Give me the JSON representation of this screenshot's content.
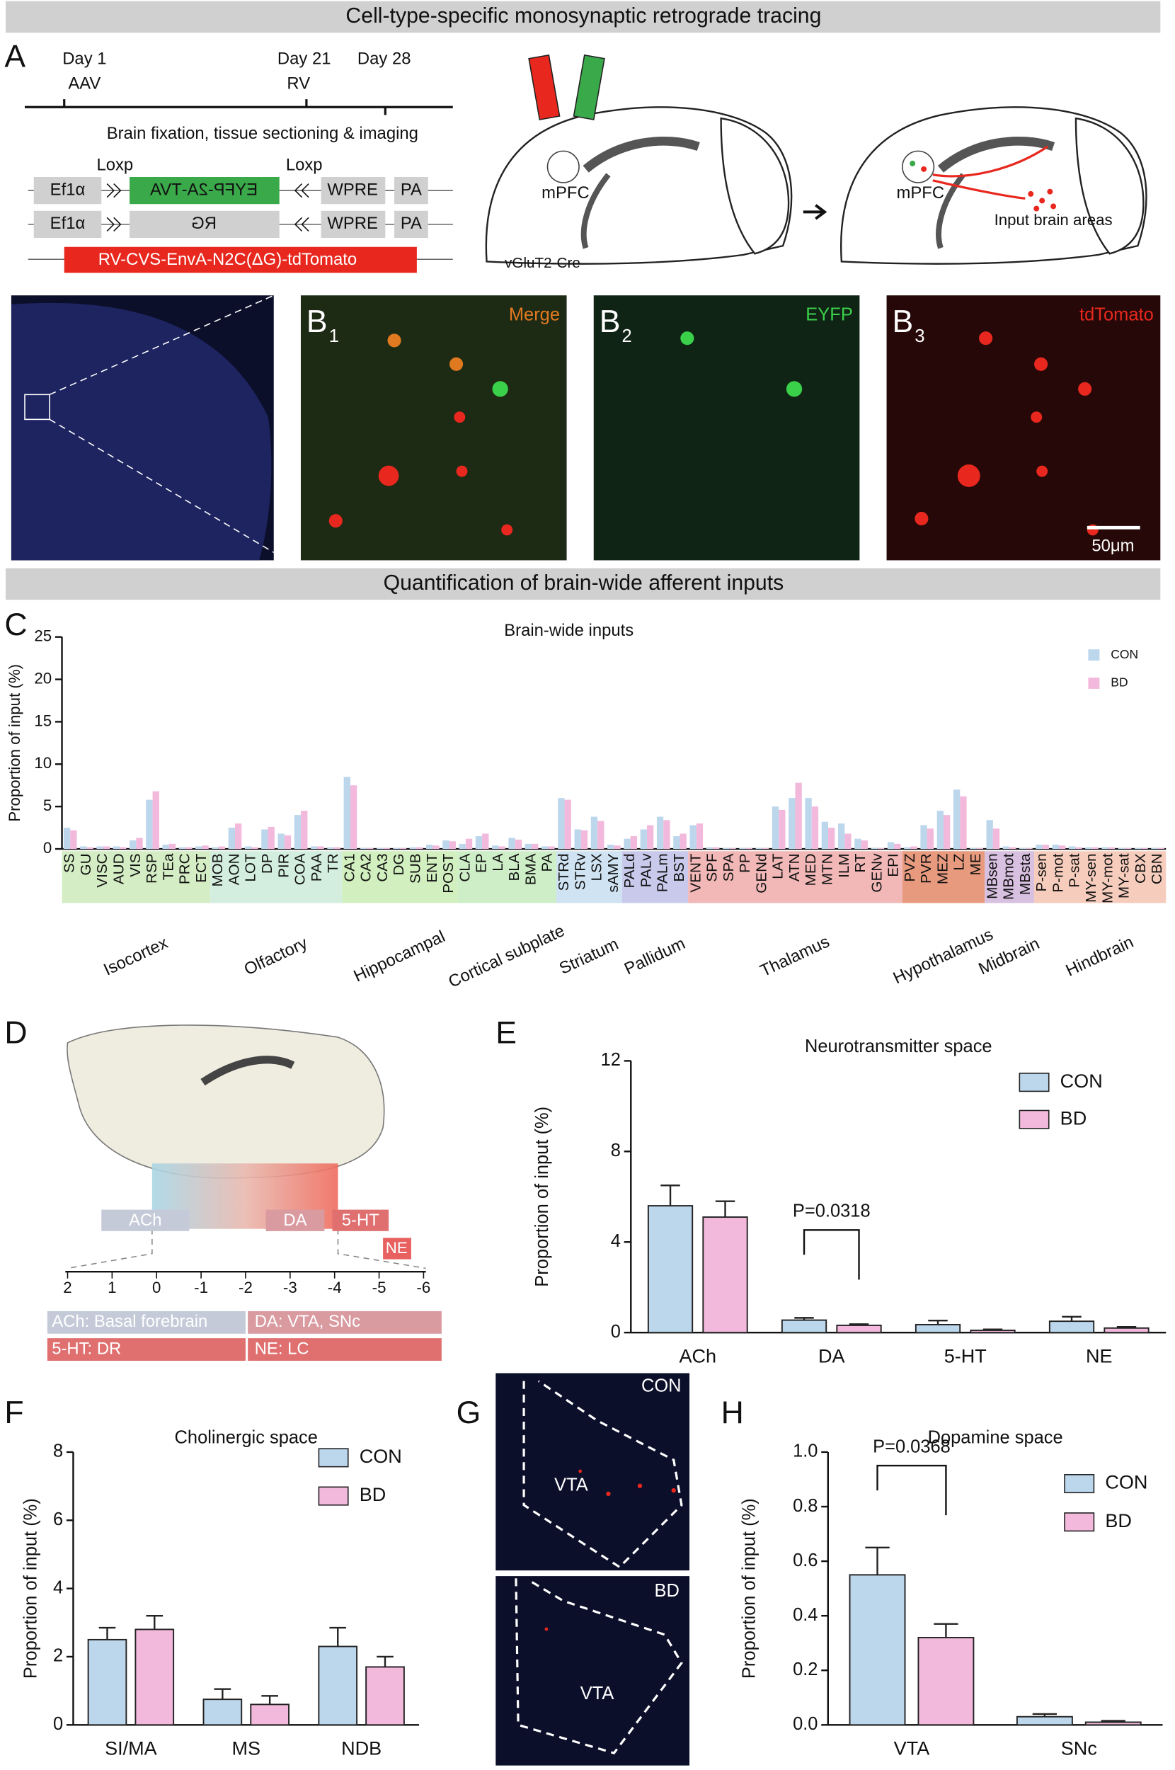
{
  "headers": [
    "Cell-type-specific monosynaptic retrograde tracing",
    "Quantification of brain-wide afferent inputs"
  ],
  "panel_labels": [
    "A",
    "B",
    "C",
    "D",
    "E",
    "F",
    "G",
    "H"
  ],
  "panel_a": {
    "timeline": [
      {
        "day": "Day 1",
        "event": "AAV"
      },
      {
        "day": "Day 21",
        "event": "RV"
      },
      {
        "day": "Day 28"
      }
    ],
    "step": "Brain fixation, tissue sectioning & imaging",
    "loxp": "Loxp",
    "constructs": [
      [
        "Ef1α",
        "EYFP-2A-TVA",
        "WPRE",
        "PA"
      ],
      [
        "Ef1α",
        "RG",
        "WPRE",
        "PA"
      ],
      [
        "RV-CVS-EnvA-N2C(ΔG)-tdTomato"
      ]
    ],
    "region": "mPFC",
    "inputs": "Input brain areas",
    "mouse": "vGluT2-Cre"
  },
  "panel_b": {
    "images": [
      {
        "letter": "B",
        "sub": "1",
        "label": "Merge"
      },
      {
        "letter": "B",
        "sub": "2",
        "label": "EYFP"
      },
      {
        "letter": "B",
        "sub": "3",
        "label": "tdTomato"
      }
    ],
    "scale_bar": "50μm"
  },
  "panel_d": {
    "boxes": [
      "ACh",
      "DA",
      "5-HT",
      "NE"
    ],
    "axis": [
      2,
      1,
      0,
      -1,
      -2,
      -3,
      -4,
      -5,
      -6
    ],
    "legend": [
      "ACh: Basal forebrain",
      "DA: VTA, SNc",
      "5-HT: DR",
      "NE: LC"
    ]
  },
  "panel_g": {
    "images": [
      {
        "group": "CON",
        "region": "VTA"
      },
      {
        "group": "BD",
        "region": "VTA"
      }
    ]
  },
  "chart_data": [
    {
      "type": "bar",
      "title": "Brain-wide inputs",
      "ylabel": "Proportion of input (%)",
      "ylim": [
        0,
        25
      ],
      "yticks": [
        0,
        5,
        10,
        15,
        20,
        25
      ],
      "groups": [
        {
          "name": "Isocortex",
          "color": "#d4edc4",
          "categories": [
            "SS",
            "GU",
            "VISC",
            "AUD",
            "VIS",
            "RSP",
            "TEa",
            "PRC",
            "ECT"
          ]
        },
        {
          "name": "Olfactory",
          "color": "#d3eedf",
          "categories": [
            "MOB",
            "AON",
            "LOT",
            "DP",
            "PIR",
            "COA",
            "PAA",
            "TR"
          ]
        },
        {
          "name": "Hippocampal",
          "color": "#d2efc0",
          "categories": [
            "CA1",
            "CA2",
            "CA3",
            "DG",
            "SUB",
            "ENT",
            "POST"
          ]
        },
        {
          "name": "Cortical subplate",
          "color": "#cdeec6",
          "categories": [
            "CLA",
            "EP",
            "LA",
            "BLA",
            "BMA",
            "PA"
          ]
        },
        {
          "name": "Striatum",
          "color": "#cfe3f2",
          "categories": [
            "STRd",
            "STRv",
            "LSX",
            "sAMY"
          ]
        },
        {
          "name": "Pallidum",
          "color": "#c9c9ec",
          "categories": [
            "PALd",
            "PALv",
            "PALm",
            "BST"
          ]
        },
        {
          "name": "Thalamus",
          "color": "#f2b8b8",
          "categories": [
            "VENT",
            "SPF",
            "SPA",
            "PP",
            "GENd",
            "LAT",
            "ATN",
            "MED",
            "MTN",
            "ILM",
            "RT",
            "GENv",
            "EPI"
          ]
        },
        {
          "name": "Hypothalamus",
          "color": "#e89a7e",
          "categories": [
            "PVZ",
            "PVR",
            "MEZ",
            "LZ",
            "ME"
          ]
        },
        {
          "name": "Midbrain",
          "color": "#d8c0e0",
          "categories": [
            "MBsen",
            "MBmot",
            "MBsta"
          ]
        },
        {
          "name": "Hindbrain",
          "color": "#f6cdbd",
          "categories": [
            "P-sen",
            "P-mot",
            "P-sat",
            "MY-sen",
            "MY-mot",
            "MY-sat",
            "CBX",
            "CBN"
          ]
        }
      ],
      "series": [
        {
          "name": "CON",
          "color": "#bcd6ec",
          "values": [
            2.5,
            0.3,
            0.3,
            0.3,
            1.0,
            5.8,
            0.5,
            0.2,
            0.3,
            0.2,
            2.5,
            0.3,
            2.3,
            1.8,
            4.0,
            0.3,
            0.2,
            8.5,
            0.1,
            0.1,
            0.1,
            0.2,
            0.5,
            1.0,
            0.6,
            1.5,
            0.4,
            1.3,
            0.6,
            0.3,
            6.0,
            2.3,
            3.8,
            0.5,
            1.2,
            2.3,
            3.8,
            1.5,
            2.8,
            0.2,
            0.1,
            0.1,
            0.1,
            5.0,
            6.0,
            6.0,
            3.2,
            3.0,
            1.2,
            0.1,
            0.8,
            0.2,
            2.8,
            4.5,
            7.0,
            0.1,
            3.4,
            0.3,
            0.1,
            0.5,
            0.5,
            0.3,
            0.2,
            0.2,
            0.1,
            0.1,
            0.1
          ]
        },
        {
          "name": "BD",
          "color": "#f2b9dc",
          "values": [
            2.2,
            0.2,
            0.3,
            0.2,
            1.3,
            6.8,
            0.6,
            0.2,
            0.4,
            0.3,
            3.0,
            0.2,
            2.6,
            1.6,
            4.5,
            0.3,
            0.2,
            7.5,
            0.1,
            0.1,
            0.1,
            0.2,
            0.4,
            0.9,
            1.2,
            1.8,
            0.3,
            1.1,
            0.6,
            0.3,
            5.8,
            2.2,
            3.3,
            0.4,
            1.5,
            2.8,
            3.4,
            1.8,
            3.0,
            0.2,
            0.1,
            0.1,
            0.1,
            4.6,
            7.8,
            5.0,
            2.5,
            1.8,
            1.0,
            0.1,
            0.6,
            0.3,
            2.4,
            4.0,
            6.2,
            0.1,
            2.4,
            0.2,
            0.1,
            0.5,
            0.4,
            0.2,
            0.2,
            0.2,
            0.1,
            0.1,
            0.1
          ]
        }
      ]
    },
    {
      "type": "bar",
      "title": "Neurotransmitter space",
      "ylabel": "Proportion of input (%)",
      "ylim": [
        0,
        12
      ],
      "yticks": [
        0,
        4,
        8,
        12
      ],
      "categories": [
        "ACh",
        "DA",
        "5-HT",
        "NE"
      ],
      "annotation": "P=0.0318",
      "series": [
        {
          "name": "CON",
          "color": "#bcd6ec",
          "values": [
            5.6,
            0.55,
            0.35,
            0.5
          ],
          "errors": [
            0.9,
            0.1,
            0.18,
            0.2
          ]
        },
        {
          "name": "BD",
          "color": "#f2b9dc",
          "values": [
            5.1,
            0.32,
            0.1,
            0.2
          ],
          "errors": [
            0.7,
            0.05,
            0.04,
            0.05
          ]
        }
      ]
    },
    {
      "type": "bar",
      "title": "Cholinergic space",
      "ylabel": "Proportion of input (%)",
      "ylim": [
        0,
        8
      ],
      "yticks": [
        0,
        2,
        4,
        6,
        8
      ],
      "categories": [
        "SI/MA",
        "MS",
        "NDB"
      ],
      "series": [
        {
          "name": "CON",
          "color": "#bcd6ec",
          "values": [
            2.5,
            0.75,
            2.3
          ],
          "errors": [
            0.35,
            0.3,
            0.55
          ]
        },
        {
          "name": "BD",
          "color": "#f2b9dc",
          "values": [
            2.8,
            0.6,
            1.7
          ],
          "errors": [
            0.4,
            0.25,
            0.3
          ]
        }
      ]
    },
    {
      "type": "bar",
      "title": "Dopamine space",
      "ylabel": "Proportion of input (%)",
      "ylim": [
        0,
        1
      ],
      "yticks": [
        {
          "value": 0,
          "label": "0.0"
        },
        0.2,
        0.4,
        0.6,
        0.8,
        {
          "value": 1,
          "label": "1.0"
        }
      ],
      "categories": [
        "VTA",
        "SNc"
      ],
      "annotation": "P=0.0368",
      "series": [
        {
          "name": "CON",
          "color": "#bcd6ec",
          "values": [
            0.55,
            0.03
          ],
          "errors": [
            0.1,
            0.01
          ]
        },
        {
          "name": "BD",
          "color": "#f2b9dc",
          "values": [
            0.32,
            0.01
          ],
          "errors": [
            0.05,
            0.005
          ]
        }
      ]
    }
  ]
}
